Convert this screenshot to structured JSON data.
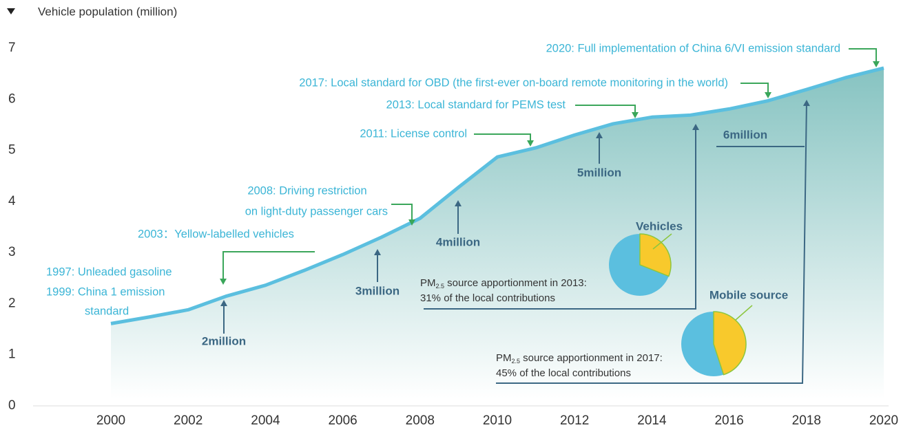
{
  "chart_data": {
    "type": "area",
    "y_label": "Vehicle population (million)",
    "x": [
      2000,
      2001,
      2002,
      2003,
      2004,
      2005,
      2006,
      2007,
      2008,
      2009,
      2010,
      2011,
      2012,
      2013,
      2014,
      2015,
      2016,
      2017,
      2018,
      2019,
      2020
    ],
    "values": [
      1.61,
      1.74,
      1.88,
      2.15,
      2.36,
      2.65,
      2.96,
      3.3,
      3.67,
      4.28,
      4.87,
      5.05,
      5.3,
      5.52,
      5.65,
      5.69,
      5.81,
      5.97,
      6.19,
      6.42,
      6.61
    ],
    "color": "#5bbfdf",
    "xlim": [
      2000,
      2020
    ],
    "xticks": [
      2000,
      2002,
      2004,
      2006,
      2008,
      2010,
      2012,
      2014,
      2016,
      2018,
      2020
    ],
    "ylim": [
      0,
      7
    ],
    "yticks": [
      0,
      1,
      2,
      3,
      4,
      5,
      6,
      7
    ],
    "grid": false,
    "annotations": [
      {
        "lines": [
          "2020: Full implementation of China 6/VI emission standard"
        ]
      },
      {
        "lines": [
          "2017: Local standard for OBD (the first-ever on-board remote monitoring in the world)"
        ]
      },
      {
        "lines": [
          "2013: Local standard for PEMS test"
        ]
      },
      {
        "lines": [
          "2011: License control"
        ]
      },
      {
        "lines": [
          "2008: Driving restriction",
          "on light-duty passenger cars"
        ]
      },
      {
        "lines": [
          "2003：Yellow-labelled vehicles"
        ]
      },
      {
        "lines": [
          "1997: Unleaded gasoline"
        ]
      },
      {
        "lines": [
          "1999: China 1 emission",
          "standard"
        ]
      }
    ],
    "milestones": [
      "2million",
      "3million",
      "4million",
      "5million",
      "6million"
    ],
    "pies": [
      {
        "title": "Vehicles",
        "value": 31,
        "caption_pre": "PM",
        "caption_sub": "2.5",
        "caption_post": " source apportionment in 2013:",
        "caption_line2": "31% of the local contributions"
      },
      {
        "title": "Mobile source",
        "value": 45,
        "caption_pre": "PM",
        "caption_sub": "2.5",
        "caption_post": " source apportionment in 2017:",
        "caption_line2": "45% of the local contributions"
      }
    ]
  }
}
